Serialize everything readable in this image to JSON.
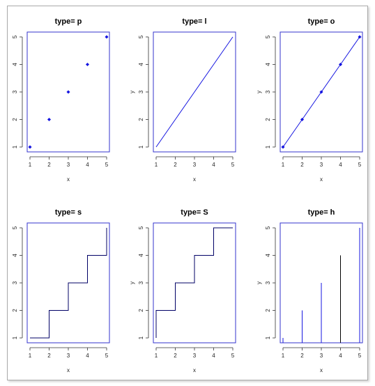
{
  "colors": {
    "axis": "#3333cc",
    "series": "#1515e0",
    "text": "#000000"
  },
  "chart_data": [
    {
      "type": "scatter",
      "plot_type": "p",
      "title": "type= p",
      "xlabel": "x",
      "ylabel": "",
      "x": [
        1,
        2,
        3,
        4,
        5
      ],
      "y": [
        1,
        2,
        3,
        4,
        5
      ],
      "xlim": [
        1,
        5
      ],
      "ylim": [
        1,
        5
      ],
      "xticks": [
        1,
        2,
        3,
        4,
        5
      ],
      "yticks": [
        1,
        2,
        3,
        4,
        5
      ],
      "grid": false
    },
    {
      "type": "line",
      "plot_type": "l",
      "title": "type= l",
      "xlabel": "x",
      "ylabel": "y",
      "x": [
        1,
        2,
        3,
        4,
        5
      ],
      "y": [
        1,
        2,
        3,
        4,
        5
      ],
      "xlim": [
        1,
        5
      ],
      "ylim": [
        1,
        5
      ],
      "xticks": [
        1,
        2,
        3,
        4,
        5
      ],
      "yticks": [
        1,
        2,
        3,
        4,
        5
      ],
      "grid": false
    },
    {
      "type": "line",
      "plot_type": "o",
      "title": "type= o",
      "xlabel": "x",
      "ylabel": "y",
      "x": [
        1,
        2,
        3,
        4,
        5
      ],
      "y": [
        1,
        2,
        3,
        4,
        5
      ],
      "xlim": [
        1,
        5
      ],
      "ylim": [
        1,
        5
      ],
      "xticks": [
        1,
        2,
        3,
        4,
        5
      ],
      "yticks": [
        1,
        2,
        3,
        4,
        5
      ],
      "grid": false
    },
    {
      "type": "line",
      "plot_type": "s",
      "title": "type= s",
      "xlabel": "x",
      "ylabel": "",
      "x": [
        1,
        2,
        3,
        4,
        5
      ],
      "y": [
        1,
        2,
        3,
        4,
        5
      ],
      "xlim": [
        1,
        5
      ],
      "ylim": [
        1,
        5
      ],
      "xticks": [
        1,
        2,
        3,
        4,
        5
      ],
      "yticks": [
        1,
        2,
        3,
        4,
        5
      ],
      "grid": false
    },
    {
      "type": "line",
      "plot_type": "S",
      "title": "type= S",
      "xlabel": "x",
      "ylabel": "y",
      "x": [
        1,
        2,
        3,
        4,
        5
      ],
      "y": [
        1,
        2,
        3,
        4,
        5
      ],
      "xlim": [
        1,
        5
      ],
      "ylim": [
        1,
        5
      ],
      "xticks": [
        1,
        2,
        3,
        4,
        5
      ],
      "yticks": [
        1,
        2,
        3,
        4,
        5
      ],
      "grid": false
    },
    {
      "type": "bar",
      "plot_type": "h",
      "title": "type= h",
      "xlabel": "x",
      "ylabel": "y",
      "x": [
        1,
        2,
        3,
        4,
        5
      ],
      "y": [
        1,
        2,
        3,
        4,
        5
      ],
      "xlim": [
        1,
        5
      ],
      "ylim": [
        1,
        5
      ],
      "xticks": [
        1,
        2,
        3,
        4,
        5
      ],
      "yticks": [
        1,
        2,
        3,
        4,
        5
      ],
      "grid": false
    }
  ]
}
